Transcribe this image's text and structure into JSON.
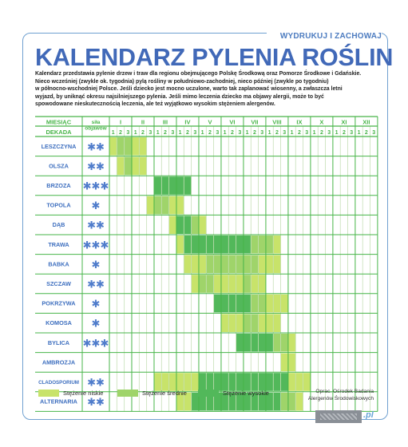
{
  "header": {
    "subtitle": "WYDRUKUJ I ZACHOWAJ",
    "title": "KALENDARZ PYLENIA ROŚLIN"
  },
  "intro": {
    "line1": "Kalendarz przedstawia pylenie drzew i traw dla regionu obejmującego Polskę Środkową oraz Pomorze Środkowe i Gdańskie.",
    "line2": "Nieco wcześniej (zwykle ok. tygodnia) pylą rośliny w południowo-zachodniej, nieco później (zwykle po tygodniu)",
    "line3": "w północno-wschodniej Polsce. Jeśli dziecko jest mocno uczulone, warto tak zaplanować wiosenny, a zwłaszcza letni",
    "line4": "wyjazd, by uniknąć okresu najsilniejszego pylenia. Jeśli mimo leczenia dziecko ma objawy alergii, może to być",
    "line5": "spowodowane nieskutecznością leczenia, ale też wyjątkowo wysokim stężeniem alergenów."
  },
  "table": {
    "col_month": "MIESIĄC",
    "col_decade": "DEKADA",
    "col_strength_1": "siła",
    "col_strength_2": "objawów",
    "months": [
      "I",
      "II",
      "III",
      "IV",
      "V",
      "VI",
      "VII",
      "VIII",
      "IX",
      "X",
      "XI",
      "XII"
    ],
    "decades": [
      "1",
      "2",
      "3"
    ],
    "plants": [
      {
        "name": "LESZCZYNA",
        "stars": "✱✱",
        "levels": [
          1,
          2,
          2,
          1,
          1,
          0,
          0,
          0,
          0,
          0,
          0,
          0,
          0,
          0,
          0,
          0,
          0,
          0,
          0,
          0,
          0,
          0,
          0,
          0,
          0,
          0,
          0,
          0,
          0,
          0,
          0,
          0,
          0,
          0,
          0,
          0
        ]
      },
      {
        "name": "OLSZA",
        "stars": "✱✱",
        "levels": [
          0,
          1,
          2,
          1,
          1,
          0,
          0,
          0,
          0,
          0,
          0,
          0,
          0,
          0,
          0,
          0,
          0,
          0,
          0,
          0,
          0,
          0,
          0,
          0,
          0,
          0,
          0,
          0,
          0,
          0,
          0,
          0,
          0,
          0,
          0,
          0
        ]
      },
      {
        "name": "BRZOZA",
        "stars": "✱✱✱",
        "levels": [
          0,
          0,
          0,
          0,
          0,
          0,
          3,
          3,
          3,
          3,
          3,
          0,
          0,
          0,
          0,
          0,
          0,
          0,
          0,
          0,
          0,
          0,
          0,
          0,
          0,
          0,
          0,
          0,
          0,
          0,
          0,
          0,
          0,
          0,
          0,
          0
        ]
      },
      {
        "name": "TOPOLA",
        "stars": "✱",
        "levels": [
          0,
          0,
          0,
          0,
          0,
          1,
          2,
          2,
          1,
          1,
          0,
          0,
          0,
          0,
          0,
          0,
          0,
          0,
          0,
          0,
          0,
          0,
          0,
          0,
          0,
          0,
          0,
          0,
          0,
          0,
          0,
          0,
          0,
          0,
          0,
          0
        ]
      },
      {
        "name": "DĄB",
        "stars": "✱✱",
        "levels": [
          0,
          0,
          0,
          0,
          0,
          0,
          0,
          0,
          1,
          3,
          3,
          2,
          1,
          0,
          0,
          0,
          0,
          0,
          0,
          0,
          0,
          0,
          0,
          0,
          0,
          0,
          0,
          0,
          0,
          0,
          0,
          0,
          0,
          0,
          0,
          0
        ]
      },
      {
        "name": "TRAWA",
        "stars": "✱✱✱",
        "levels": [
          0,
          0,
          0,
          0,
          0,
          0,
          0,
          0,
          0,
          1,
          3,
          3,
          3,
          3,
          3,
          3,
          3,
          3,
          3,
          2,
          2,
          2,
          1,
          0,
          0,
          0,
          0,
          0,
          0,
          0,
          0,
          0,
          0,
          0,
          0,
          0
        ]
      },
      {
        "name": "BABKA",
        "stars": "✱",
        "levels": [
          0,
          0,
          0,
          0,
          0,
          0,
          0,
          0,
          0,
          0,
          1,
          1,
          1,
          2,
          2,
          2,
          2,
          2,
          2,
          2,
          1,
          1,
          1,
          0,
          0,
          0,
          0,
          0,
          0,
          0,
          0,
          0,
          0,
          0,
          0,
          0
        ]
      },
      {
        "name": "SZCZAW",
        "stars": "✱✱",
        "levels": [
          0,
          0,
          0,
          0,
          0,
          0,
          0,
          0,
          0,
          0,
          0,
          1,
          2,
          2,
          1,
          1,
          1,
          1,
          2,
          1,
          1,
          0,
          0,
          0,
          0,
          0,
          0,
          0,
          0,
          0,
          0,
          0,
          0,
          0,
          0,
          0
        ]
      },
      {
        "name": "POKRZYWA",
        "stars": "✱",
        "levels": [
          0,
          0,
          0,
          0,
          0,
          0,
          0,
          0,
          0,
          0,
          0,
          0,
          0,
          0,
          3,
          3,
          3,
          3,
          3,
          2,
          2,
          1,
          1,
          1,
          0,
          0,
          0,
          0,
          0,
          0,
          0,
          0,
          0,
          0,
          0,
          0
        ]
      },
      {
        "name": "KOMOSA",
        "stars": "✱",
        "levels": [
          0,
          0,
          0,
          0,
          0,
          0,
          0,
          0,
          0,
          0,
          0,
          0,
          0,
          0,
          0,
          1,
          1,
          1,
          2,
          2,
          1,
          1,
          1,
          0,
          0,
          0,
          0,
          0,
          0,
          0,
          0,
          0,
          0,
          0,
          0,
          0
        ]
      },
      {
        "name": "BYLICA",
        "stars": "✱✱✱",
        "levels": [
          0,
          0,
          0,
          0,
          0,
          0,
          0,
          0,
          0,
          0,
          0,
          0,
          0,
          0,
          0,
          0,
          0,
          3,
          3,
          3,
          3,
          3,
          2,
          2,
          1,
          0,
          0,
          0,
          0,
          0,
          0,
          0,
          0,
          0,
          0,
          0
        ]
      },
      {
        "name": "AMBROZJA",
        "stars": "",
        "levels": [
          0,
          0,
          0,
          0,
          0,
          0,
          0,
          0,
          0,
          0,
          0,
          0,
          0,
          0,
          0,
          0,
          0,
          0,
          0,
          0,
          0,
          0,
          0,
          1,
          1,
          0,
          0,
          0,
          0,
          0,
          0,
          0,
          0,
          0,
          0,
          0
        ]
      },
      {
        "name": "CLADOSPORIUM",
        "stars": "✱✱",
        "levels": [
          0,
          0,
          0,
          0,
          0,
          0,
          1,
          1,
          1,
          1,
          1,
          1,
          3,
          3,
          3,
          3,
          3,
          3,
          3,
          3,
          3,
          3,
          3,
          3,
          1,
          1,
          1,
          0,
          0,
          0,
          0,
          0,
          0,
          0,
          0,
          0
        ]
      },
      {
        "name": "ALTERNARIA",
        "stars": "✱✱",
        "levels": [
          0,
          0,
          0,
          0,
          0,
          0,
          0,
          0,
          0,
          1,
          1,
          3,
          3,
          3,
          3,
          3,
          3,
          3,
          3,
          3,
          3,
          3,
          3,
          2,
          2,
          1,
          0,
          0,
          0,
          0,
          0,
          0,
          0,
          0,
          0,
          0
        ]
      }
    ]
  },
  "legend": {
    "low": "Stężenie niskie",
    "medium": "Stężenie średnie",
    "high": "Stężenie wysokie",
    "colors": {
      "low": "#c8e36a",
      "medium": "#9fd46a",
      "high": "#52b85a"
    }
  },
  "source": {
    "line1": "Oprac. Ośrodek Badania",
    "line2": "Alergenów Środowiskowych"
  },
  "logo": {
    "suffix": ".pl"
  }
}
